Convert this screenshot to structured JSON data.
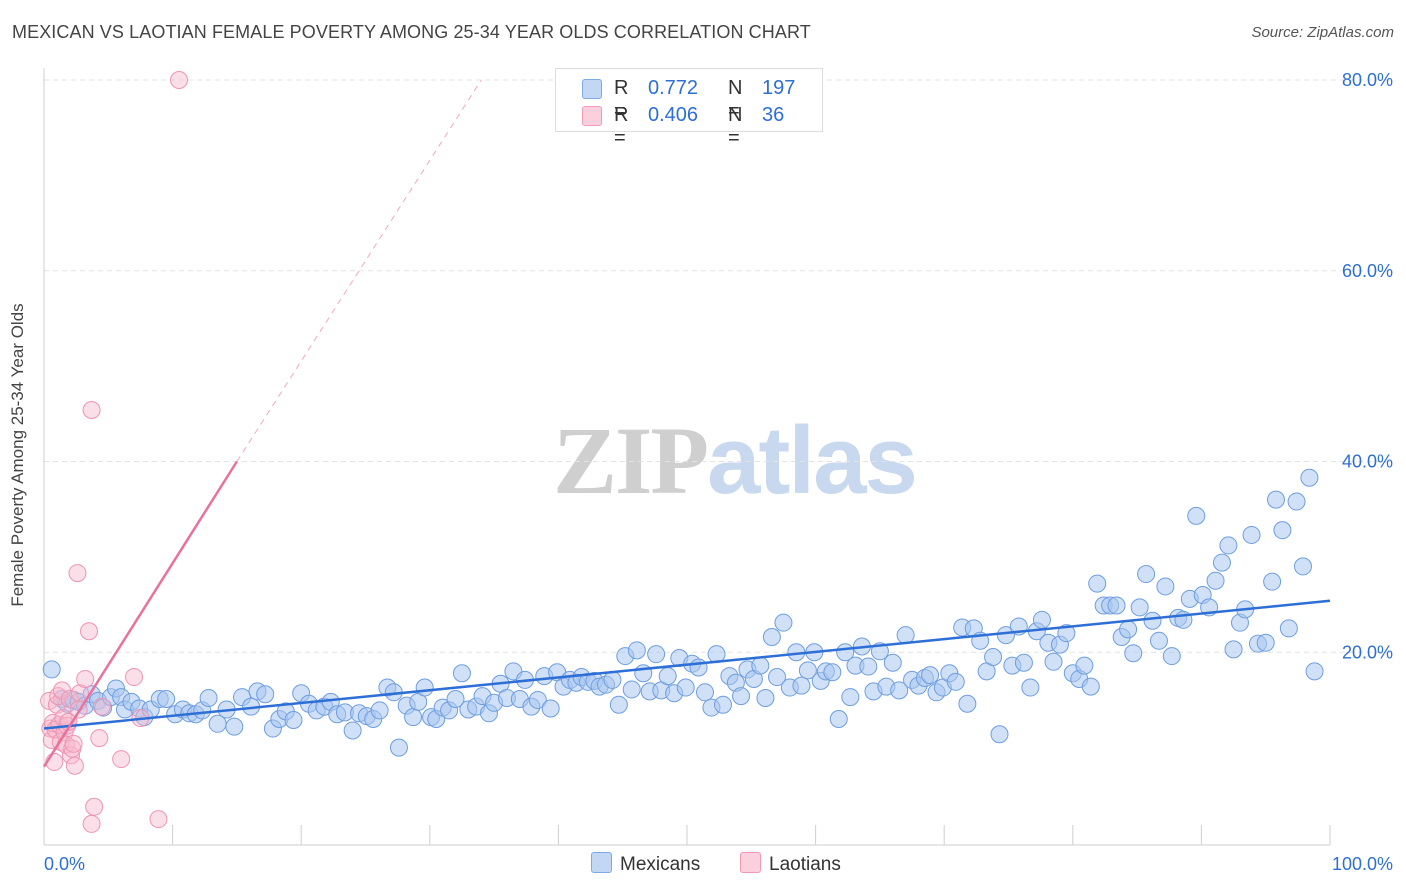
{
  "title": "MEXICAN VS LAOTIAN FEMALE POVERTY AMONG 25-34 YEAR OLDS CORRELATION CHART",
  "source": "Source: ZipAtlas.com",
  "watermark": {
    "zip": "ZIP",
    "atlas": "atlas"
  },
  "legend_top": [
    {
      "r_label": "R =",
      "r_value": "0.772",
      "n_label": "N =",
      "n_value": "197"
    },
    {
      "r_label": "R =",
      "r_value": "0.406",
      "n_label": "N =",
      "n_value": "36"
    }
  ],
  "legend_bottom": [
    "Mexicans",
    "Laotians"
  ],
  "chart_data": {
    "type": "scatter",
    "xlabel": "",
    "ylabel": "Female Poverty Among 25-34 Year Olds",
    "xlim": [
      0,
      100
    ],
    "ylim": [
      0,
      80
    ],
    "x_tick_labels": [
      {
        "value": 0,
        "label": "0.0%"
      },
      {
        "value": 100,
        "label": "100.0%"
      }
    ],
    "y_tick_labels": [
      {
        "value": 20,
        "label": "20.0%"
      },
      {
        "value": 40,
        "label": "40.0%"
      },
      {
        "value": 60,
        "label": "60.0%"
      },
      {
        "value": 80,
        "label": "80.0%"
      }
    ],
    "colors": {
      "mexicans": "#a9c7f0",
      "mexicans_line": "#2d6fd6",
      "laotians": "#f6b8cb",
      "laotians_line": "#e8729d",
      "axis_text": "#2d6fd6"
    },
    "grid": true,
    "series": [
      {
        "name": "Mexicans",
        "trend": {
          "x": [
            0,
            100
          ],
          "y": [
            12.0,
            25.4
          ]
        },
        "points": [
          [
            0.6,
            18.2
          ],
          [
            1.4,
            15.1
          ],
          [
            1.8,
            14.6
          ],
          [
            2.3,
            15.0
          ],
          [
            2.7,
            14.8
          ],
          [
            3.2,
            14.4
          ],
          [
            3.7,
            15.6
          ],
          [
            4.2,
            14.9
          ],
          [
            4.6,
            14.2
          ],
          [
            5.2,
            15.3
          ],
          [
            5.6,
            16.2
          ],
          [
            6.0,
            15.3
          ],
          [
            6.3,
            14.0
          ],
          [
            6.8,
            14.8
          ],
          [
            7.4,
            14.1
          ],
          [
            7.8,
            13.2
          ],
          [
            8.3,
            14.0
          ],
          [
            9.0,
            15.1
          ],
          [
            9.5,
            15.1
          ],
          [
            10.2,
            13.5
          ],
          [
            10.8,
            14.0
          ],
          [
            11.3,
            13.6
          ],
          [
            11.8,
            13.5
          ],
          [
            12.3,
            13.9
          ],
          [
            12.8,
            15.2
          ],
          [
            13.5,
            12.5
          ],
          [
            14.2,
            14.0
          ],
          [
            14.8,
            12.2
          ],
          [
            15.4,
            15.3
          ],
          [
            16.1,
            14.3
          ],
          [
            16.6,
            15.9
          ],
          [
            17.2,
            15.6
          ],
          [
            17.8,
            12.0
          ],
          [
            18.3,
            13.0
          ],
          [
            18.8,
            13.8
          ],
          [
            19.4,
            12.9
          ],
          [
            20.0,
            15.7
          ],
          [
            20.6,
            14.6
          ],
          [
            21.2,
            13.9
          ],
          [
            21.8,
            14.3
          ],
          [
            22.3,
            14.8
          ],
          [
            22.8,
            13.5
          ],
          [
            23.4,
            13.7
          ],
          [
            24.0,
            11.8
          ],
          [
            24.5,
            13.6
          ],
          [
            25.1,
            13.3
          ],
          [
            25.6,
            13.0
          ],
          [
            26.1,
            13.9
          ],
          [
            26.7,
            16.3
          ],
          [
            27.2,
            15.8
          ],
          [
            27.6,
            10.0
          ],
          [
            28.2,
            14.4
          ],
          [
            28.7,
            13.2
          ],
          [
            29.1,
            14.8
          ],
          [
            29.6,
            16.3
          ],
          [
            30.1,
            13.2
          ],
          [
            30.5,
            13.0
          ],
          [
            31.0,
            14.2
          ],
          [
            31.5,
            13.9
          ],
          [
            32.0,
            15.1
          ],
          [
            32.5,
            17.8
          ],
          [
            33.0,
            14.0
          ],
          [
            33.6,
            14.3
          ],
          [
            34.1,
            15.4
          ],
          [
            34.6,
            13.6
          ],
          [
            35.0,
            14.7
          ],
          [
            35.5,
            16.7
          ],
          [
            36.0,
            15.2
          ],
          [
            36.5,
            18.0
          ],
          [
            37.0,
            15.1
          ],
          [
            37.4,
            17.1
          ],
          [
            37.9,
            14.3
          ],
          [
            38.4,
            15.0
          ],
          [
            38.9,
            17.5
          ],
          [
            39.4,
            14.1
          ],
          [
            39.9,
            17.9
          ],
          [
            40.4,
            16.4
          ],
          [
            40.9,
            17.1
          ],
          [
            41.4,
            16.8
          ],
          [
            41.8,
            17.4
          ],
          [
            42.3,
            16.9
          ],
          [
            42.8,
            17.0
          ],
          [
            43.2,
            16.4
          ],
          [
            43.7,
            16.6
          ],
          [
            44.2,
            17.1
          ],
          [
            44.7,
            14.5
          ],
          [
            45.2,
            19.6
          ],
          [
            45.7,
            16.1
          ],
          [
            46.1,
            20.2
          ],
          [
            46.6,
            17.8
          ],
          [
            47.1,
            15.9
          ],
          [
            47.6,
            19.8
          ],
          [
            48.0,
            16.0
          ],
          [
            48.5,
            17.5
          ],
          [
            49.0,
            15.7
          ],
          [
            49.4,
            19.4
          ],
          [
            49.9,
            16.3
          ],
          [
            50.4,
            18.8
          ],
          [
            50.9,
            18.4
          ],
          [
            51.4,
            15.8
          ],
          [
            51.9,
            14.2
          ],
          [
            52.3,
            19.8
          ],
          [
            52.8,
            14.5
          ],
          [
            53.3,
            17.5
          ],
          [
            53.8,
            16.8
          ],
          [
            54.2,
            15.4
          ],
          [
            54.7,
            18.2
          ],
          [
            55.2,
            17.2
          ],
          [
            55.7,
            18.6
          ],
          [
            56.1,
            15.2
          ],
          [
            56.6,
            21.6
          ],
          [
            57.0,
            17.4
          ],
          [
            57.5,
            23.1
          ],
          [
            58.0,
            16.3
          ],
          [
            58.5,
            20.0
          ],
          [
            58.9,
            16.5
          ],
          [
            59.4,
            18.1
          ],
          [
            59.9,
            20.0
          ],
          [
            60.4,
            17.0
          ],
          [
            60.8,
            18.0
          ],
          [
            61.3,
            17.9
          ],
          [
            61.8,
            13.0
          ],
          [
            62.3,
            20.0
          ],
          [
            62.7,
            15.3
          ],
          [
            63.1,
            18.6
          ],
          [
            63.6,
            20.6
          ],
          [
            64.1,
            18.5
          ],
          [
            64.5,
            15.9
          ],
          [
            65.0,
            20.1
          ],
          [
            65.5,
            16.4
          ],
          [
            66.0,
            18.9
          ],
          [
            66.5,
            16.0
          ],
          [
            67.0,
            21.8
          ],
          [
            67.5,
            17.1
          ],
          [
            68.0,
            16.5
          ],
          [
            68.5,
            17.3
          ],
          [
            68.9,
            17.6
          ],
          [
            69.4,
            15.8
          ],
          [
            69.9,
            16.3
          ],
          [
            70.4,
            17.8
          ],
          [
            70.9,
            16.9
          ],
          [
            71.4,
            22.6
          ],
          [
            71.8,
            14.6
          ],
          [
            72.3,
            22.5
          ],
          [
            72.8,
            21.2
          ],
          [
            73.3,
            18.0
          ],
          [
            73.8,
            19.5
          ],
          [
            74.3,
            11.4
          ],
          [
            74.8,
            21.8
          ],
          [
            75.3,
            18.6
          ],
          [
            75.8,
            22.7
          ],
          [
            76.2,
            18.9
          ],
          [
            76.7,
            16.3
          ],
          [
            77.2,
            22.2
          ],
          [
            77.6,
            23.4
          ],
          [
            78.1,
            21.0
          ],
          [
            78.5,
            19.0
          ],
          [
            79.0,
            20.8
          ],
          [
            79.5,
            22.0
          ],
          [
            80.0,
            17.8
          ],
          [
            80.5,
            17.2
          ],
          [
            80.9,
            18.6
          ],
          [
            81.4,
            16.4
          ],
          [
            81.9,
            27.2
          ],
          [
            82.4,
            24.9
          ],
          [
            82.9,
            24.9
          ],
          [
            83.4,
            24.9
          ],
          [
            83.8,
            21.6
          ],
          [
            84.3,
            22.4
          ],
          [
            84.7,
            19.9
          ],
          [
            85.2,
            24.7
          ],
          [
            85.7,
            28.2
          ],
          [
            86.2,
            23.3
          ],
          [
            86.7,
            21.2
          ],
          [
            87.2,
            26.9
          ],
          [
            87.7,
            19.6
          ],
          [
            88.2,
            23.6
          ],
          [
            88.6,
            23.4
          ],
          [
            89.1,
            25.6
          ],
          [
            89.6,
            34.3
          ],
          [
            90.1,
            26.0
          ],
          [
            90.6,
            24.7
          ],
          [
            91.1,
            27.5
          ],
          [
            91.6,
            29.4
          ],
          [
            92.1,
            31.2
          ],
          [
            92.5,
            20.3
          ],
          [
            93.0,
            23.1
          ],
          [
            93.4,
            24.5
          ],
          [
            93.9,
            32.3
          ],
          [
            94.4,
            20.9
          ],
          [
            95.0,
            21.0
          ],
          [
            95.5,
            27.4
          ],
          [
            95.8,
            36.0
          ],
          [
            96.3,
            32.8
          ],
          [
            96.8,
            22.5
          ],
          [
            97.4,
            35.8
          ],
          [
            97.9,
            29.0
          ],
          [
            98.4,
            38.3
          ],
          [
            98.8,
            18.0
          ]
        ]
      },
      {
        "name": "Laotians",
        "trend": {
          "x": [
            0,
            15
          ],
          "y": [
            8.0,
            40.0
          ],
          "dashed_extension": {
            "x": [
              15,
              34
            ],
            "y": [
              40.0,
              80.0
            ]
          }
        },
        "points": [
          [
            0.4,
            14.9
          ],
          [
            0.5,
            12.0
          ],
          [
            0.6,
            10.8
          ],
          [
            0.7,
            12.6
          ],
          [
            0.8,
            8.5
          ],
          [
            0.9,
            11.9
          ],
          [
            1.0,
            14.5
          ],
          [
            1.1,
            15.4
          ],
          [
            1.2,
            12.4
          ],
          [
            1.3,
            10.6
          ],
          [
            1.4,
            16.0
          ],
          [
            1.5,
            13.1
          ],
          [
            1.6,
            11.6
          ],
          [
            1.7,
            10.3
          ],
          [
            1.8,
            12.3
          ],
          [
            1.9,
            12.7
          ],
          [
            2.0,
            15.1
          ],
          [
            2.1,
            9.2
          ],
          [
            2.2,
            9.9
          ],
          [
            2.3,
            10.4
          ],
          [
            2.4,
            8.1
          ],
          [
            2.6,
            28.3
          ],
          [
            2.7,
            14.0
          ],
          [
            2.8,
            15.7
          ],
          [
            3.2,
            17.2
          ],
          [
            3.5,
            22.2
          ],
          [
            3.7,
            45.4
          ],
          [
            3.7,
            2.0
          ],
          [
            3.9,
            3.8
          ],
          [
            4.3,
            11.0
          ],
          [
            4.5,
            14.3
          ],
          [
            6.0,
            8.8
          ],
          [
            7.0,
            17.4
          ],
          [
            7.5,
            13.1
          ],
          [
            8.9,
            2.5
          ],
          [
            10.5,
            80.0
          ]
        ]
      }
    ]
  }
}
